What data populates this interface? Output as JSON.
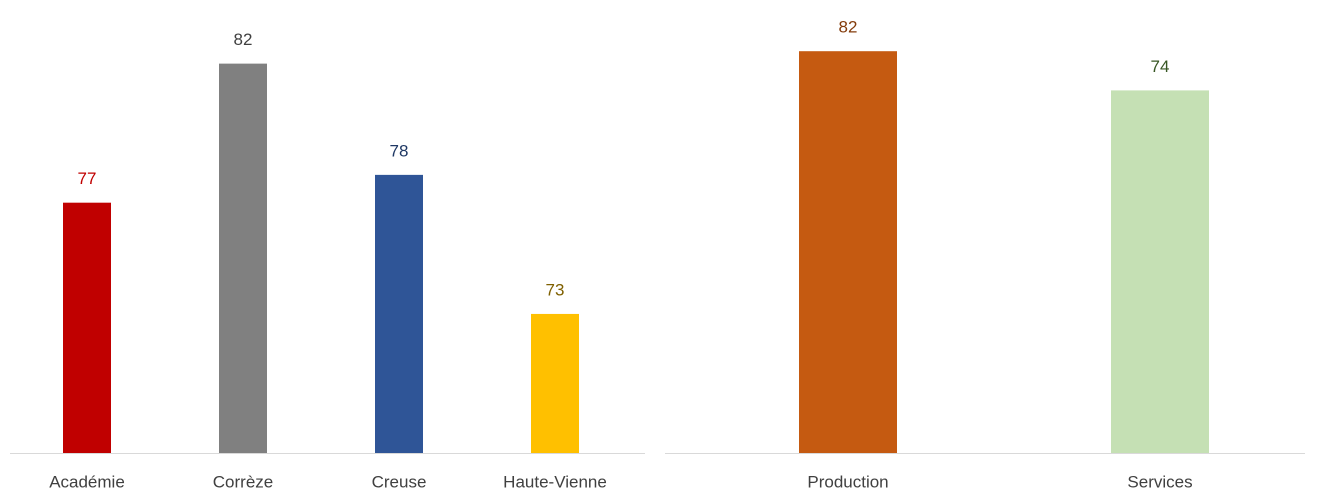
{
  "chart_data": [
    {
      "type": "bar",
      "categories": [
        "Académie",
        "Corrèze",
        "Creuse",
        "Haute-Vienne"
      ],
      "values": [
        77,
        82,
        78,
        73
      ],
      "colors": [
        "#c00000",
        "#808080",
        "#2f5597",
        "#ffc000"
      ],
      "label_colors": [
        "#c00000",
        "#404040",
        "#1f3864",
        "#7f6000"
      ],
      "ylim": [
        68,
        84
      ]
    },
    {
      "type": "bar",
      "categories": [
        "Production",
        "Services"
      ],
      "values": [
        82,
        74
      ],
      "colors": [
        "#c55a11",
        "#c5e0b4"
      ],
      "label_colors": [
        "#843c0c",
        "#375623"
      ],
      "ylim": [
        0,
        90
      ]
    }
  ]
}
